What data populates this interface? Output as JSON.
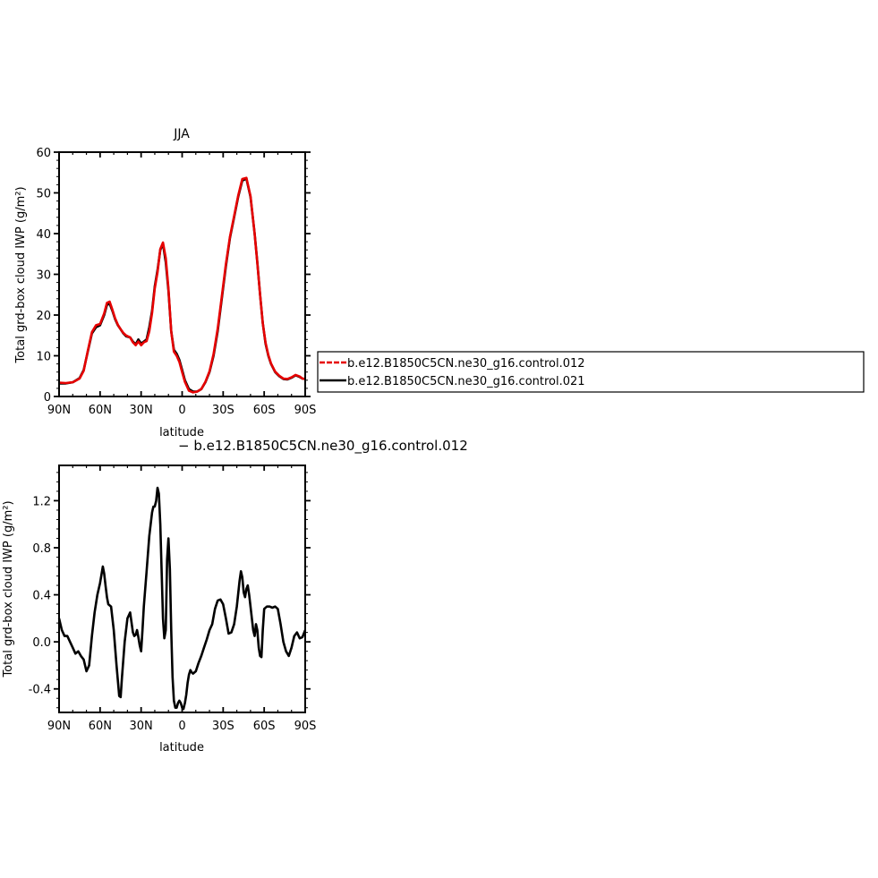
{
  "chart_data": [
    {
      "type": "line",
      "title": "JJA",
      "xlabel": "latitude",
      "ylabel": "Total grd-box cloud IWP (g/m²)",
      "xlim": [
        90,
        -90
      ],
      "ylim": [
        0,
        60
      ],
      "x_ticks": [
        90,
        60,
        30,
        0,
        -30,
        -60,
        -90
      ],
      "x_tick_labels": [
        "90N",
        "60N",
        "30N",
        "0",
        "30S",
        "60S",
        "90S"
      ],
      "y_ticks": [
        0,
        10,
        20,
        30,
        40,
        50,
        60
      ],
      "y_tick_labels": [
        "0",
        "10",
        "20",
        "30",
        "40",
        "50",
        "60"
      ],
      "legend": "right",
      "legend_entries": [
        "b.e12.B1850C5CN.ne30_g16.control.012",
        "b.e12.B1850C5CN.ne30_g16.control.021"
      ],
      "grid": false,
      "series": [
        {
          "name": "b.e12.B1850C5CN.ne30_g16.control.021",
          "color": "#000000",
          "x": [
            90,
            85,
            80,
            75,
            72,
            69,
            66,
            63,
            60,
            57,
            55,
            53,
            51,
            49,
            47,
            45,
            43,
            41,
            38,
            36,
            34,
            32,
            30,
            28,
            26,
            24,
            22,
            20,
            18,
            16,
            14,
            12,
            10,
            8,
            6,
            4,
            2,
            0,
            -2,
            -5,
            -8,
            -11,
            -14,
            -17,
            -20,
            -23,
            -26,
            -29,
            -32,
            -35,
            -38,
            -41,
            -44,
            -47,
            -50,
            -53,
            -55,
            -57,
            -59,
            -61,
            -63,
            -65,
            -68,
            -71,
            -74,
            -77,
            -80,
            -83,
            -86,
            -88,
            -90
          ],
          "y": [
            3.2,
            3.2,
            3.5,
            4.5,
            6.5,
            11,
            15.5,
            17,
            17.5,
            20,
            22.5,
            22.8,
            21,
            19,
            17.5,
            16.5,
            15.5,
            14.8,
            14.5,
            13.5,
            12.8,
            14,
            13,
            13.5,
            14,
            17,
            21,
            27,
            31,
            36,
            37.5,
            33,
            26,
            16,
            11.5,
            10.5,
            9,
            6.5,
            4,
            1.8,
            1.2,
            1.2,
            1.8,
            3.5,
            6,
            10,
            16,
            24,
            32,
            39,
            44,
            49,
            53,
            53.5,
            49,
            40,
            33,
            25,
            18,
            13,
            10,
            8,
            6,
            5,
            4.3,
            4.2,
            4.6,
            5.2,
            4.8,
            4.4,
            4.3
          ]
        },
        {
          "name": "b.e12.B1850C5CN.ne30_g16.control.012",
          "color": "#e60000",
          "x": [
            90,
            85,
            80,
            75,
            72,
            69,
            66,
            63,
            60,
            57,
            55,
            53,
            51,
            49,
            47,
            45,
            43,
            41,
            38,
            36,
            34,
            32,
            30,
            28,
            26,
            24,
            22,
            20,
            18,
            16,
            14,
            12,
            10,
            8,
            6,
            4,
            2,
            0,
            -2,
            -5,
            -8,
            -11,
            -14,
            -17,
            -20,
            -23,
            -26,
            -29,
            -32,
            -35,
            -38,
            -41,
            -44,
            -47,
            -50,
            -53,
            -55,
            -57,
            -59,
            -61,
            -63,
            -65,
            -68,
            -71,
            -74,
            -77,
            -80,
            -83,
            -86,
            -88,
            -90
          ],
          "y": [
            3.4,
            3.3,
            3.5,
            4.4,
            6.3,
            11.2,
            15.8,
            17.5,
            17.8,
            20.4,
            23,
            23.3,
            21.3,
            19.2,
            17.6,
            16.5,
            15.6,
            15,
            14.5,
            13.3,
            12.6,
            13.5,
            12.6,
            13.3,
            13.6,
            16,
            20.5,
            26.5,
            30.5,
            36.2,
            37.8,
            34,
            26.5,
            16,
            11,
            10,
            8.5,
            6,
            3.6,
            1.4,
            1,
            1.2,
            1.8,
            3.6,
            6.2,
            10.4,
            16.6,
            24.5,
            32.5,
            39.3,
            44.3,
            49.3,
            53.4,
            53.7,
            49.2,
            40,
            32.8,
            25,
            18,
            13.2,
            10.2,
            8.1,
            6.1,
            5.1,
            4.4,
            4.3,
            4.7,
            5.3,
            4.9,
            4.4,
            4.3
          ]
        }
      ]
    },
    {
      "type": "line",
      "title": "− b.e12.B1850C5CN.ne30_g16.control.012",
      "xlabel": "latitude",
      "ylabel": "Total grd-box cloud IWP (g/m²)",
      "xlim": [
        90,
        -90
      ],
      "ylim": [
        -0.6,
        1.5
      ],
      "x_ticks": [
        90,
        60,
        30,
        0,
        -30,
        -60,
        -90
      ],
      "x_tick_labels": [
        "90N",
        "60N",
        "30N",
        "0",
        "30S",
        "60S",
        "90S"
      ],
      "y_ticks": [
        -0.4,
        0,
        0.4,
        0.8,
        1.2
      ],
      "y_tick_labels": [
        "-0.4",
        "0.0",
        "0.4",
        "0.8",
        "1.2"
      ],
      "grid": false,
      "series": [
        {
          "color": "#000000",
          "x": [
            90,
            88,
            86,
            84,
            82,
            80,
            78,
            76,
            74,
            72,
            70,
            68,
            66,
            64,
            62,
            60,
            58,
            57,
            56,
            55,
            54,
            52,
            50,
            48,
            46,
            45,
            44,
            42,
            40,
            38,
            36,
            35,
            34,
            33,
            32,
            31,
            30,
            29,
            28,
            26,
            24,
            22,
            21,
            20,
            19,
            18,
            17,
            16,
            15,
            14,
            13,
            12,
            11,
            10,
            9,
            8,
            7,
            6,
            5,
            4,
            3,
            2,
            1,
            0,
            -1,
            -2,
            -3,
            -4,
            -5,
            -6,
            -7,
            -8,
            -10,
            -12,
            -14,
            -16,
            -18,
            -20,
            -22,
            -24,
            -26,
            -28,
            -30,
            -32,
            -34,
            -36,
            -38,
            -40,
            -42,
            -43,
            -44,
            -45,
            -46,
            -47,
            -48,
            -49,
            -50,
            -51,
            -52,
            -53,
            -54,
            -55,
            -56,
            -57,
            -58,
            -59,
            -60,
            -62,
            -64,
            -66,
            -68,
            -70,
            -72,
            -74,
            -76,
            -78,
            -80,
            -82,
            -84,
            -86,
            -88,
            -90
          ],
          "y": [
            0.2,
            0.1,
            0.05,
            0.05,
            0.0,
            -0.05,
            -0.1,
            -0.08,
            -0.12,
            -0.15,
            -0.25,
            -0.2,
            0.05,
            0.25,
            0.4,
            0.5,
            0.64,
            0.58,
            0.48,
            0.38,
            0.32,
            0.3,
            0.1,
            -0.2,
            -0.46,
            -0.47,
            -0.3,
            0.0,
            0.2,
            0.25,
            0.08,
            0.05,
            0.06,
            0.1,
            0.04,
            -0.03,
            -0.08,
            0.1,
            0.3,
            0.6,
            0.9,
            1.1,
            1.15,
            1.15,
            1.2,
            1.31,
            1.26,
            1.0,
            0.6,
            0.2,
            0.03,
            0.1,
            0.7,
            0.88,
            0.62,
            0.1,
            -0.3,
            -0.5,
            -0.56,
            -0.56,
            -0.52,
            -0.5,
            -0.52,
            -0.56,
            -0.57,
            -0.52,
            -0.45,
            -0.35,
            -0.28,
            -0.24,
            -0.26,
            -0.27,
            -0.25,
            -0.18,
            -0.12,
            -0.05,
            0.02,
            0.1,
            0.15,
            0.28,
            0.35,
            0.36,
            0.32,
            0.2,
            0.07,
            0.08,
            0.15,
            0.3,
            0.52,
            0.6,
            0.55,
            0.42,
            0.38,
            0.45,
            0.48,
            0.4,
            0.3,
            0.2,
            0.1,
            0.05,
            0.15,
            0.1,
            -0.05,
            -0.12,
            -0.13,
            0.1,
            0.28,
            0.3,
            0.3,
            0.29,
            0.3,
            0.28,
            0.15,
            0.0,
            -0.08,
            -0.12,
            -0.05,
            0.05,
            0.08,
            0.03,
            0.04,
            0.1
          ]
        }
      ]
    }
  ]
}
